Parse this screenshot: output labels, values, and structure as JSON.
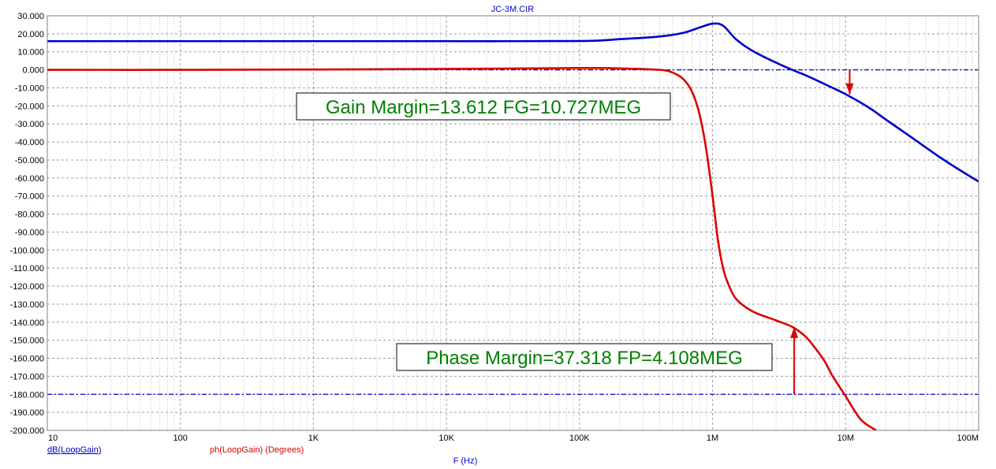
{
  "chart_data": {
    "type": "line",
    "title": "JC-3M.CIR",
    "xlabel": "F (Hz)",
    "ylabel": "",
    "x_scale": "log",
    "xlim": [
      10,
      100000000
    ],
    "ylim": [
      -200,
      30
    ],
    "grid": true,
    "x_tick_labels": [
      "10",
      "100",
      "1K",
      "10K",
      "100K",
      "1M",
      "10M",
      "100M"
    ],
    "y_tick_labels": [
      "30.000",
      "20.000",
      "10.000",
      "0.000",
      "-10.000",
      "-20.000",
      "-30.000",
      "-40.000",
      "-50.000",
      "-60.000",
      "-70.000",
      "-80.000",
      "-90.000",
      "-100.000",
      "-110.000",
      "-120.000",
      "-130.000",
      "-140.000",
      "-150.000",
      "-160.000",
      "-170.000",
      "-180.000",
      "-190.000",
      "-200.000"
    ],
    "series": [
      {
        "name": "dB(LoopGain)",
        "color": "#0000cc",
        "x": [
          10,
          100,
          1000,
          10000,
          100000,
          200000,
          400000,
          600000,
          800000,
          1000000,
          1200000,
          1500000,
          2000000,
          3000000,
          4000000,
          5000000,
          7000000,
          10000000,
          15000000,
          20000000,
          30000000,
          50000000,
          70000000,
          100000000
        ],
        "y": [
          15.9,
          15.9,
          15.9,
          15.9,
          16.0,
          17,
          18.5,
          20.5,
          23.5,
          25.6,
          24.5,
          17,
          10.5,
          4,
          -0.1,
          -3,
          -8,
          -13.5,
          -21,
          -27.5,
          -36.5,
          -48,
          -55,
          -62
        ]
      },
      {
        "name": "ph(LoopGain) (Degrees)",
        "color": "#dd0000",
        "x": [
          10,
          100,
          1000,
          10000,
          100000,
          200000,
          400000,
          500000,
          600000,
          700000,
          800000,
          900000,
          1000000,
          1100000,
          1200000,
          1300000,
          1500000,
          2000000,
          3000000,
          4000000,
          5000000,
          6000000,
          7000000,
          8000000,
          10000000,
          13000000,
          17000000
        ],
        "y": [
          0,
          0,
          0.2,
          0.5,
          1,
          0.8,
          0,
          -1.5,
          -5,
          -12,
          -25,
          -45,
          -70,
          -95,
          -110,
          -118,
          -127,
          -134,
          -139,
          -142.7,
          -148,
          -155,
          -162,
          -170,
          -181,
          -194,
          -200
        ]
      }
    ],
    "reference_lines": [
      {
        "y": 0,
        "color": "#0000cc",
        "style": "dash-dot"
      },
      {
        "y": -180,
        "color": "#0000cc",
        "style": "dash-dot"
      }
    ],
    "annotations": [
      {
        "text": "Gain Margin=13.612 FG=10.727MEG",
        "color": "#008000",
        "arrow_x": 10727000,
        "arrow_from": 0,
        "arrow_to": -13.612,
        "arrow_color": "#dd0000"
      },
      {
        "text": "Phase Margin=37.318 FP=4.108MEG",
        "color": "#008000",
        "arrow_x": 4108000,
        "arrow_from": -180,
        "arrow_to": -142.682,
        "arrow_color": "#dd0000"
      }
    ]
  }
}
